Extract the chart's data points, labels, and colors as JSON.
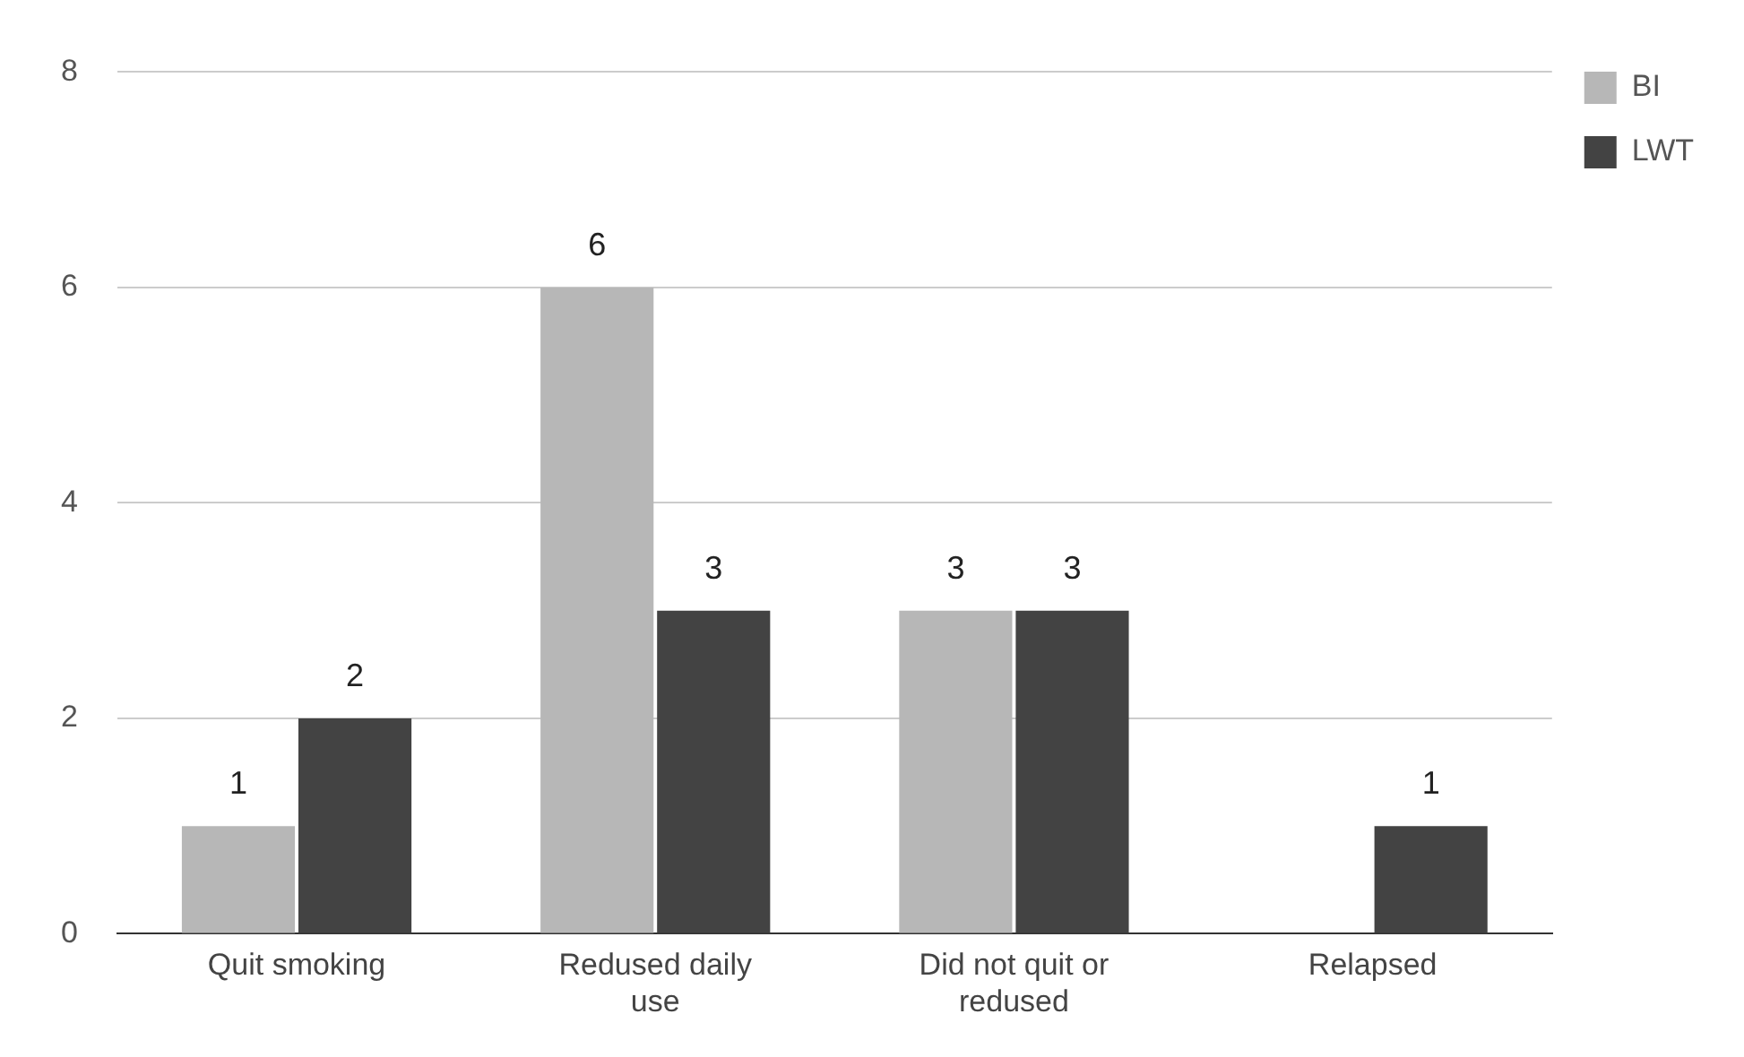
{
  "chart_data": {
    "type": "bar",
    "categories": [
      "Quit smoking",
      "Redused daily use",
      "Did not quit or redused",
      "Relapsed"
    ],
    "series": [
      {
        "name": "BI",
        "color": "#b7b7b7",
        "values": [
          1,
          6,
          3,
          null
        ]
      },
      {
        "name": "LWT",
        "color": "#434343",
        "values": [
          2,
          3,
          3,
          1
        ]
      }
    ],
    "ylim": [
      0,
      8
    ],
    "yticks": [
      0,
      2,
      4,
      6,
      8
    ],
    "grid": "y",
    "legend": "top right",
    "data_labels": true
  }
}
